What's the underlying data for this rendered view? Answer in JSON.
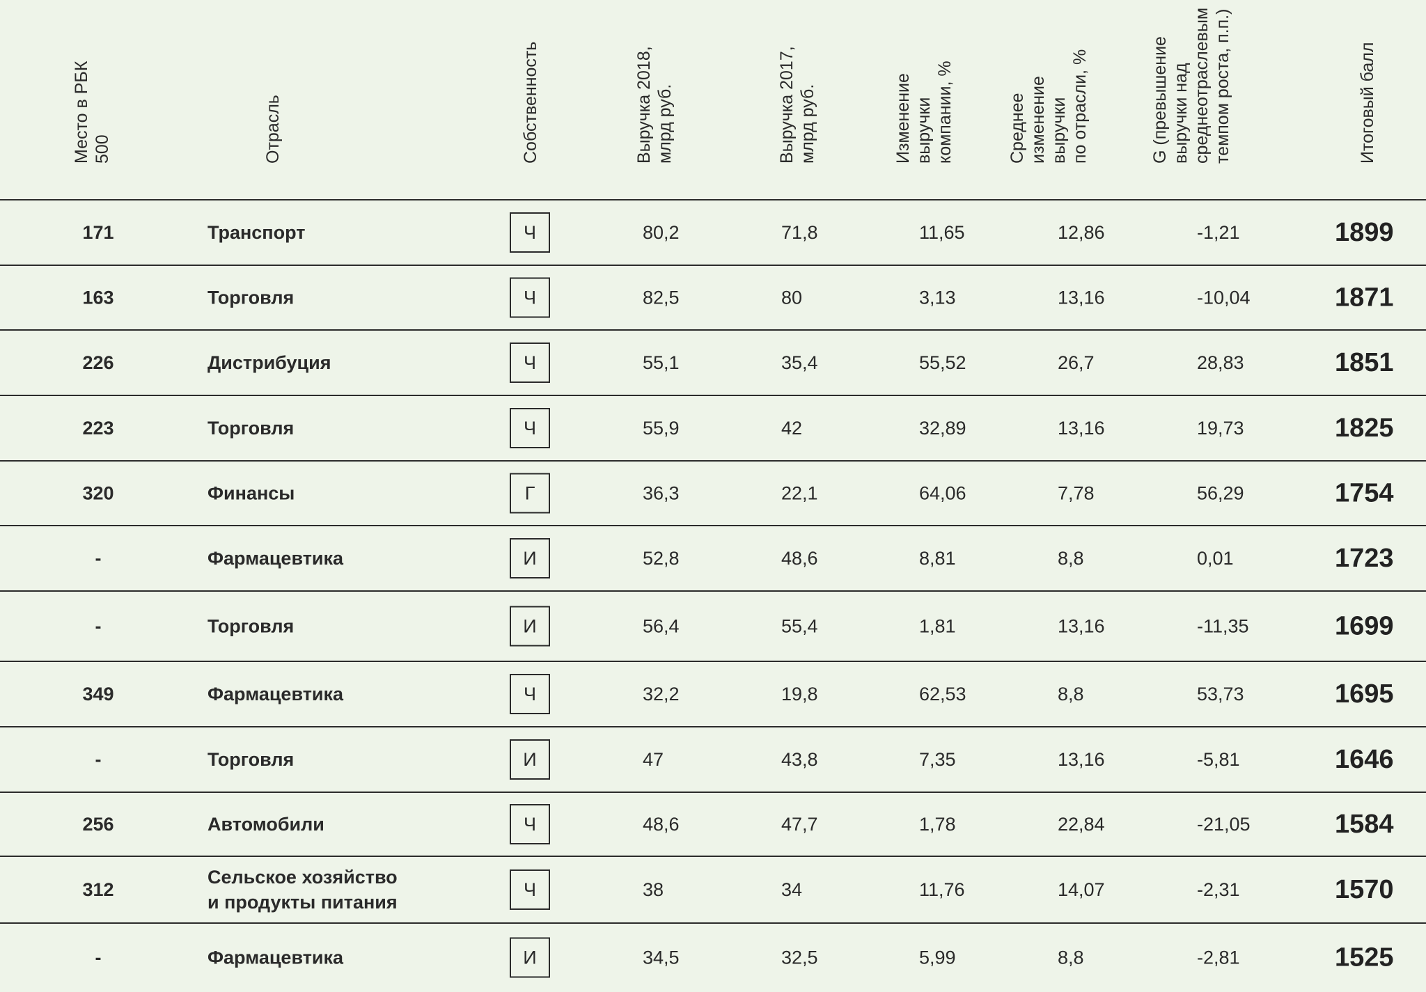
{
  "header": {
    "columns": [
      [
        "Место в РБК",
        "500"
      ],
      [
        "Отрасль"
      ],
      [
        "Собственность"
      ],
      [
        "Выручка 2018,",
        "млрд руб."
      ],
      [
        "Выручка 2017,",
        "млрд руб."
      ],
      [
        "Изменение",
        "выручки",
        "компании, %"
      ],
      [
        "Среднее",
        "изменение",
        "выручки",
        "по отрасли, %"
      ],
      [
        "G (превышение",
        "выручки над",
        "среднеотраслевым",
        "темпом роста, п.п.)"
      ],
      [
        "Итоговый балл"
      ]
    ]
  },
  "table": {
    "rows": [
      [
        "171",
        "Транспорт",
        "Ч",
        "80,2",
        "71,8",
        "11,65",
        "12,86",
        "-1,21",
        "1899"
      ],
      [
        "163",
        "Торговля",
        "Ч",
        "82,5",
        "80",
        "3,13",
        "13,16",
        "-10,04",
        "1871"
      ],
      [
        "226",
        "Дистрибуция",
        "Ч",
        "55,1",
        "35,4",
        "55,52",
        "26,7",
        "28,83",
        "1851"
      ],
      [
        "223",
        "Торговля",
        "Ч",
        "55,9",
        "42",
        "32,89",
        "13,16",
        "19,73",
        "1825"
      ],
      [
        "320",
        "Финансы",
        "Г",
        "36,3",
        "22,1",
        "64,06",
        "7,78",
        "56,29",
        "1754"
      ],
      [
        "-",
        "Фармацевтика",
        "И",
        "52,8",
        "48,6",
        "8,81",
        "8,8",
        "0,01",
        "1723"
      ],
      [
        "-",
        "Торговля",
        "И",
        "56,4",
        "55,4",
        "1,81",
        "13,16",
        "-11,35",
        "1699"
      ],
      [
        "349",
        "Фармацевтика",
        "Ч",
        "32,2",
        "19,8",
        "62,53",
        "8,8",
        "53,73",
        "1695"
      ],
      [
        "-",
        "Торговля",
        "И",
        "47",
        "43,8",
        "7,35",
        "13,16",
        "-5,81",
        "1646"
      ],
      [
        "256",
        "Автомобили",
        "Ч",
        "48,6",
        "47,7",
        "1,78",
        "22,84",
        "-21,05",
        "1584"
      ],
      [
        "312",
        [
          "Сельское хозяйство",
          "и продукты питания"
        ],
        "Ч",
        "38",
        "34",
        "11,76",
        "14,07",
        "-2,31",
        "1570"
      ],
      [
        "-",
        "Фармацевтика",
        "И",
        "34,5",
        "32,5",
        "5,99",
        "8,8",
        "-2,81",
        "1525"
      ]
    ]
  }
}
